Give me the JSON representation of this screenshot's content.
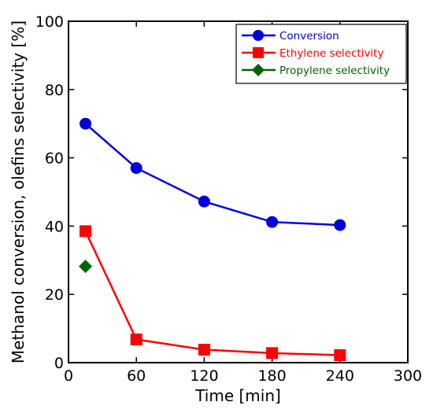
{
  "chart_data": {
    "type": "line",
    "title": "",
    "xlabel": "Time [min]",
    "ylabel": "Methanol conversion, olefins selectivity [%]",
    "xlim": [
      0,
      300
    ],
    "ylim": [
      0,
      100
    ],
    "x_ticks": [
      0,
      60,
      120,
      180,
      240,
      300
    ],
    "y_ticks": [
      0,
      20,
      40,
      60,
      80,
      100
    ],
    "grid": false,
    "legend_position": "top-right",
    "series": [
      {
        "name": "Conversion",
        "color": "#0000dd",
        "marker": "circle",
        "points": [
          [
            15,
            70
          ],
          [
            60,
            57
          ],
          [
            120,
            47.2
          ],
          [
            180,
            41.2
          ],
          [
            240,
            40.3
          ]
        ]
      },
      {
        "name": "Ethylene selectivity",
        "color": "#ff0000",
        "marker": "square",
        "points": [
          [
            15,
            38.5
          ],
          [
            60,
            6.8
          ],
          [
            120,
            3.8
          ],
          [
            180,
            2.8
          ],
          [
            240,
            2.2
          ]
        ]
      },
      {
        "name": "Propylene selectivity",
        "color": "#006400",
        "marker": "diamond",
        "points": [
          [
            15,
            28.2
          ]
        ]
      }
    ]
  }
}
